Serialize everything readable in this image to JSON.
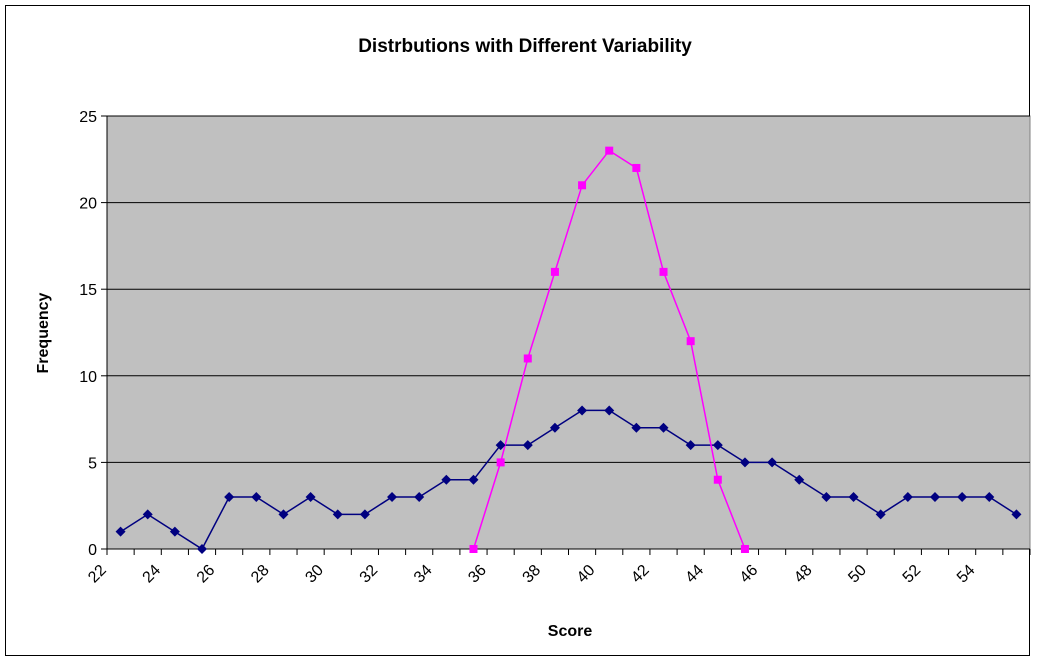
{
  "chart_data": {
    "type": "line",
    "title": "Distrbutions with Different Variability",
    "xlabel": "Score",
    "ylabel": "Frequency",
    "ylim": [
      0,
      25
    ],
    "yticks": [
      "0",
      "5",
      "10",
      "15",
      "20",
      "25"
    ],
    "xlim": [
      22,
      56
    ],
    "xticks": [
      "22",
      "24",
      "26",
      "28",
      "30",
      "32",
      "34",
      "36",
      "38",
      "40",
      "42",
      "44",
      "46",
      "48",
      "50",
      "52",
      "54"
    ],
    "grid": true,
    "legend": "none",
    "plot_background": "#C0C0C0",
    "series": [
      {
        "color": "#000080",
        "marker": "diamond",
        "x": [
          22,
          23,
          24,
          25,
          26,
          27,
          28,
          29,
          30,
          31,
          32,
          33,
          34,
          35,
          36,
          37,
          38,
          39,
          40,
          41,
          42,
          43,
          44,
          45,
          46,
          47,
          48,
          49,
          50,
          51,
          52,
          53,
          54,
          55
        ],
        "values": [
          1,
          2,
          1,
          0,
          3,
          3,
          2,
          3,
          2,
          2,
          3,
          3,
          4,
          4,
          6,
          6,
          7,
          8,
          8,
          7,
          7,
          6,
          6,
          5,
          5,
          4,
          3,
          3,
          2,
          3,
          3,
          3,
          3,
          2
        ]
      },
      {
        "color": "#FF00FF",
        "marker": "square",
        "x": [
          35,
          36,
          37,
          38,
          39,
          40,
          41,
          42,
          43,
          44,
          45
        ],
        "values": [
          0,
          5,
          11,
          16,
          21,
          23,
          22,
          16,
          12,
          4,
          0
        ]
      }
    ]
  }
}
